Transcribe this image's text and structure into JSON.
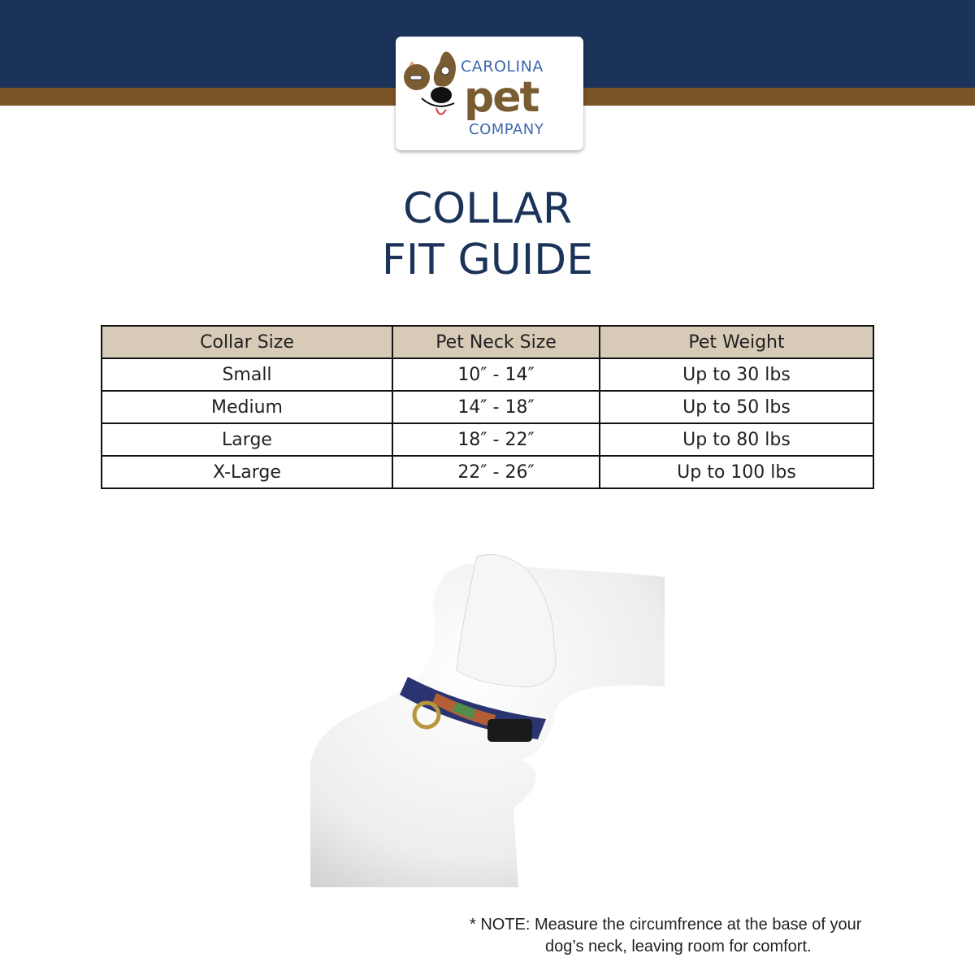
{
  "brand": {
    "line1": "CAROLINA",
    "line2": "pet",
    "line3": "COMPANY",
    "colors": {
      "navy": "#1b3359",
      "brown": "#7a5426",
      "blue": "#3f68ad"
    }
  },
  "title": {
    "line1": "COLLAR",
    "line2": "FIT GUIDE"
  },
  "table": {
    "headers": [
      "Collar Size",
      "Pet Neck Size",
      "Pet Weight"
    ],
    "rows": [
      [
        "Small",
        "10″ - 14″",
        "Up to 30 lbs"
      ],
      [
        "Medium",
        "14″ - 18″",
        "Up to 50 lbs"
      ],
      [
        "Large",
        "18″ - 22″",
        "Up to 80 lbs"
      ],
      [
        "X-Large",
        "22″ - 26″",
        "Up to 100 lbs"
      ]
    ]
  },
  "image": {
    "subject": "dog-mannequin-with-collar"
  },
  "note": {
    "line1": "* NOTE: Measure the circumfrence at the base of your",
    "line2": "dog’s neck, leaving room for comfort."
  }
}
